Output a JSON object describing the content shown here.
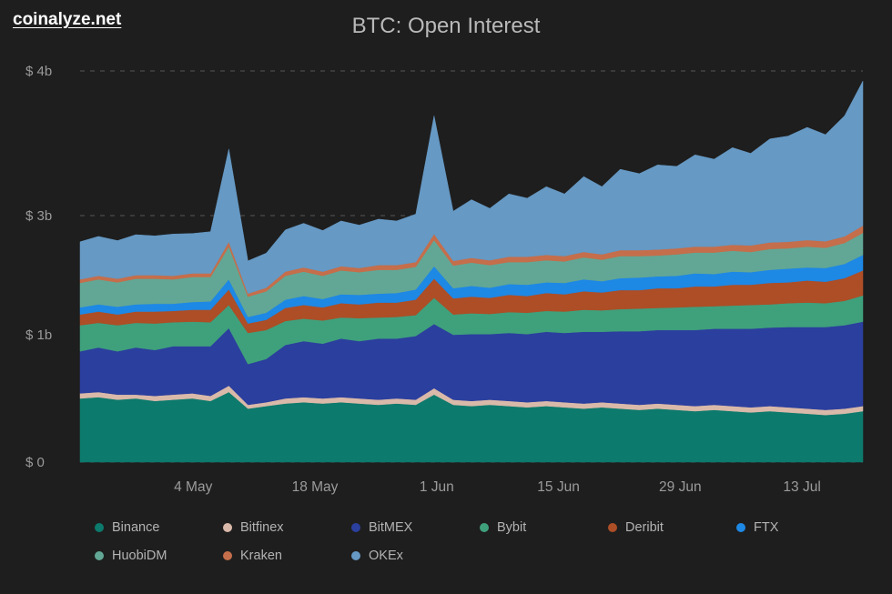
{
  "page": {
    "brand": "coinalyze.net",
    "title": "BTC: Open Interest"
  },
  "colors": {
    "background": "#1e1e1e",
    "title_text": "#b9b9b9",
    "brand_text": "#ffffff",
    "axis_label": "#9b9b9b",
    "gridline": "#555555",
    "legend_label": "#b3b3b3"
  },
  "chart_data": {
    "type": "area",
    "stacked": true,
    "title": "BTC: Open Interest",
    "unit": "USD billions",
    "grid": "dashed-horizontal",
    "legend_position": "bottom",
    "ylim": [
      0,
      4
    ],
    "x_range_days": [
      0,
      90
    ],
    "x_days": [
      0,
      2.1,
      4.3,
      6.4,
      8.6,
      10.7,
      12.9,
      15,
      17.1,
      19.3,
      21.4,
      23.6,
      25.7,
      27.9,
      30,
      32.1,
      34.3,
      36.4,
      38.6,
      40.7,
      42.9,
      45,
      47.1,
      49.3,
      51.4,
      53.6,
      55.7,
      57.9,
      60,
      62.1,
      64.3,
      66.4,
      68.6,
      70.7,
      72.9,
      75,
      77.1,
      79.3,
      81.4,
      83.6,
      85.7,
      87.9,
      90
    ],
    "x_ticks": [
      {
        "day": 13,
        "label": "4 May"
      },
      {
        "day": 27,
        "label": "18 May"
      },
      {
        "day": 41,
        "label": "1 Jun"
      },
      {
        "day": 55,
        "label": "15 Jun"
      },
      {
        "day": 69,
        "label": "29 Jun"
      },
      {
        "day": 83,
        "label": "13 Jul"
      }
    ],
    "y_ticks": [
      {
        "value": 0,
        "label": "$ 0"
      },
      {
        "value": 1,
        "label": "$ 1b"
      },
      {
        "value": 3,
        "label": "$ 3b"
      },
      {
        "value": 4,
        "label": "$ 4b"
      }
    ],
    "series": [
      {
        "name": "Binance",
        "color": "#0c7a6d",
        "values": [
          0.5,
          0.51,
          0.49,
          0.5,
          0.48,
          0.49,
          0.5,
          0.48,
          0.55,
          0.42,
          0.44,
          0.46,
          0.47,
          0.46,
          0.47,
          0.46,
          0.45,
          0.46,
          0.45,
          0.53,
          0.45,
          0.44,
          0.45,
          0.44,
          0.43,
          0.44,
          0.43,
          0.42,
          0.43,
          0.42,
          0.41,
          0.42,
          0.41,
          0.4,
          0.41,
          0.4,
          0.39,
          0.4,
          0.39,
          0.38,
          0.37,
          0.38,
          0.4
        ]
      },
      {
        "name": "Bitfinex",
        "color": "#d9b9a9",
        "values": [
          0.04,
          0.04,
          0.04,
          0.03,
          0.04,
          0.04,
          0.04,
          0.04,
          0.05,
          0.03,
          0.03,
          0.04,
          0.04,
          0.04,
          0.04,
          0.04,
          0.04,
          0.04,
          0.04,
          0.05,
          0.04,
          0.04,
          0.04,
          0.04,
          0.04,
          0.04,
          0.04,
          0.04,
          0.04,
          0.04,
          0.04,
          0.04,
          0.04,
          0.04,
          0.04,
          0.04,
          0.04,
          0.04,
          0.04,
          0.04,
          0.04,
          0.04,
          0.04
        ]
      },
      {
        "name": "BitMEX",
        "color": "#2b3f9e",
        "values": [
          0.33,
          0.35,
          0.34,
          0.37,
          0.36,
          0.38,
          0.37,
          0.39,
          0.51,
          0.32,
          0.34,
          0.42,
          0.44,
          0.43,
          0.46,
          0.45,
          0.48,
          0.47,
          0.5,
          0.6,
          0.51,
          0.53,
          0.52,
          0.55,
          0.54,
          0.57,
          0.56,
          0.59,
          0.58,
          0.6,
          0.61,
          0.62,
          0.63,
          0.64,
          0.65,
          0.66,
          0.67,
          0.68,
          0.7,
          0.71,
          0.72,
          0.74,
          0.78
        ]
      },
      {
        "name": "Bybit",
        "color": "#3fa07c",
        "values": [
          0.29,
          0.3,
          0.29,
          0.3,
          0.31,
          0.3,
          0.31,
          0.3,
          0.39,
          0.26,
          0.27,
          0.31,
          0.32,
          0.31,
          0.32,
          0.33,
          0.32,
          0.33,
          0.34,
          0.44,
          0.34,
          0.35,
          0.34,
          0.35,
          0.36,
          0.35,
          0.36,
          0.37,
          0.36,
          0.37,
          0.38,
          0.37,
          0.38,
          0.39,
          0.38,
          0.39,
          0.4,
          0.39,
          0.4,
          0.41,
          0.4,
          0.41,
          0.44
        ]
      },
      {
        "name": "Deribit",
        "color": "#ad4e26",
        "values": [
          0.18,
          0.19,
          0.18,
          0.19,
          0.2,
          0.19,
          0.2,
          0.21,
          0.26,
          0.16,
          0.17,
          0.22,
          0.23,
          0.22,
          0.24,
          0.23,
          0.25,
          0.24,
          0.26,
          0.32,
          0.27,
          0.28,
          0.27,
          0.29,
          0.28,
          0.3,
          0.29,
          0.31,
          0.3,
          0.32,
          0.31,
          0.33,
          0.32,
          0.34,
          0.33,
          0.35,
          0.34,
          0.36,
          0.35,
          0.37,
          0.36,
          0.38,
          0.42
        ]
      },
      {
        "name": "FTX",
        "color": "#1e88e5",
        "values": [
          0.12,
          0.12,
          0.13,
          0.12,
          0.13,
          0.12,
          0.13,
          0.14,
          0.17,
          0.11,
          0.12,
          0.14,
          0.15,
          0.14,
          0.15,
          0.16,
          0.15,
          0.16,
          0.17,
          0.21,
          0.17,
          0.18,
          0.17,
          0.18,
          0.19,
          0.18,
          0.19,
          0.2,
          0.19,
          0.2,
          0.21,
          0.2,
          0.21,
          0.22,
          0.21,
          0.22,
          0.21,
          0.22,
          0.23,
          0.22,
          0.23,
          0.24,
          0.26
        ]
      },
      {
        "name": "HuobiDM",
        "color": "#62a795",
        "values": [
          0.41,
          0.42,
          0.41,
          0.43,
          0.42,
          0.41,
          0.42,
          0.41,
          0.55,
          0.34,
          0.36,
          0.4,
          0.41,
          0.39,
          0.4,
          0.38,
          0.4,
          0.39,
          0.38,
          0.44,
          0.38,
          0.39,
          0.38,
          0.37,
          0.38,
          0.37,
          0.36,
          0.37,
          0.36,
          0.37,
          0.36,
          0.35,
          0.36,
          0.35,
          0.36,
          0.35,
          0.34,
          0.35,
          0.34,
          0.35,
          0.34,
          0.35,
          0.37
        ]
      },
      {
        "name": "Kraken",
        "color": "#c56e4b",
        "values": [
          0.06,
          0.06,
          0.06,
          0.06,
          0.06,
          0.06,
          0.06,
          0.06,
          0.08,
          0.05,
          0.06,
          0.07,
          0.07,
          0.07,
          0.07,
          0.07,
          0.08,
          0.08,
          0.08,
          0.1,
          0.08,
          0.08,
          0.08,
          0.09,
          0.09,
          0.09,
          0.09,
          0.09,
          0.09,
          0.1,
          0.1,
          0.1,
          0.1,
          0.1,
          0.1,
          0.1,
          0.11,
          0.11,
          0.11,
          0.11,
          0.11,
          0.11,
          0.12
        ]
      },
      {
        "name": "OKEx",
        "color": "#6699c4",
        "values": [
          0.63,
          0.66,
          0.64,
          0.68,
          0.66,
          0.7,
          0.67,
          0.7,
          0.9,
          0.55,
          0.58,
          0.7,
          0.74,
          0.69,
          0.76,
          0.72,
          0.77,
          0.74,
          0.79,
          1.0,
          0.79,
          0.82,
          0.8,
          0.84,
          0.81,
          0.86,
          0.83,
          0.88,
          0.85,
          0.9,
          0.87,
          0.92,
          0.89,
          0.94,
          0.91,
          0.96,
          0.93,
          0.98,
          0.99,
          1.02,
          0.99,
          1.04,
          1.1
        ]
      }
    ]
  }
}
